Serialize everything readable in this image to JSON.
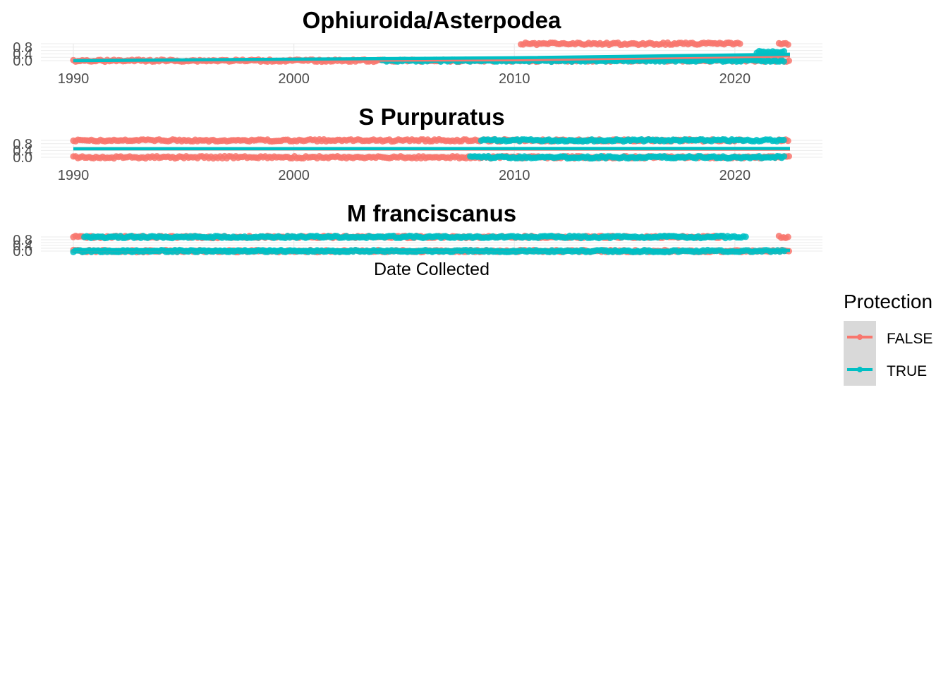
{
  "chart_data": {
    "type": "scatter",
    "x_label": "Date Collected",
    "legend": {
      "title": "Protection",
      "position": "right",
      "entries": [
        {
          "label": "FALSE",
          "color": "#F8766D"
        },
        {
          "label": "TRUE",
          "color": "#00BFC4"
        }
      ]
    },
    "x_ticks": [
      "1990",
      "2000",
      "2010",
      "2020"
    ],
    "y_ticks": [
      "0.0",
      "0.4",
      "0.8"
    ],
    "grid": true,
    "panels": [
      {
        "title": "Ophiuroida/Asterpodea",
        "show_x_ticks": true,
        "xlim": [
          1990.0,
          2022.5
        ],
        "ylim": [
          0,
          1
        ],
        "series": [
          {
            "name": "FALSE",
            "color": "#F8766D",
            "points_runs": [
              {
                "x": [
                  1990.0,
                  2022.5
                ],
                "y": 0
              },
              {
                "x": [
                  2010.3,
                  2020.3
                ],
                "y": 1
              },
              {
                "x": [
                  2022.0,
                  2022.5
                ],
                "y": 1
              }
            ],
            "trend": [
              [
                1990.0,
                0.0
              ],
              [
                2010.0,
                0.05
              ],
              [
                2022.5,
                0.28
              ]
            ]
          },
          {
            "name": "TRUE",
            "color": "#00BFC4",
            "points_runs": [
              {
                "x": [
                  2004.0,
                  2022.3
                ],
                "y": 0
              },
              {
                "x": [
                  2021.0,
                  2022.3
                ],
                "y": 0.5
              }
            ],
            "trend": [
              [
                1990.0,
                0.0
              ],
              [
                2010.0,
                0.17
              ],
              [
                2022.5,
                0.38
              ]
            ]
          }
        ]
      },
      {
        "title": "S Purpuratus",
        "show_x_ticks": true,
        "xlim": [
          1990.0,
          2022.5
        ],
        "ylim": [
          0,
          1
        ],
        "series": [
          {
            "name": "FALSE",
            "color": "#F8766D",
            "points_runs": [
              {
                "x": [
                  1990.0,
                  2022.5
                ],
                "y": 0
              },
              {
                "x": [
                  1990.0,
                  2020.5
                ],
                "y": 1
              },
              {
                "x": [
                  2022.0,
                  2022.5
                ],
                "y": 1
              }
            ],
            "trend": [
              [
                1990.0,
                0.5
              ],
              [
                2022.5,
                0.48
              ]
            ]
          },
          {
            "name": "TRUE",
            "color": "#00BFC4",
            "points_runs": [
              {
                "x": [
                  2008.0,
                  2022.3
                ],
                "y": 0
              },
              {
                "x": [
                  2008.5,
                  2022.3
                ],
                "y": 1
              }
            ],
            "trend": [
              [
                1990.0,
                0.5
              ],
              [
                2022.5,
                0.52
              ]
            ]
          }
        ]
      },
      {
        "title": "M franciscanus",
        "show_x_ticks": false,
        "xlim": [
          1990.0,
          2022.5
        ],
        "ylim": [
          0,
          1
        ],
        "series": [
          {
            "name": "FALSE",
            "color": "#F8766D",
            "points_runs": [
              {
                "x": [
                  1990.0,
                  2022.5
                ],
                "y": 0
              },
              {
                "x": [
                  1990.0,
                  2019.5
                ],
                "y": 1
              },
              {
                "x": [
                  2022.0,
                  2022.5
                ],
                "y": 1
              }
            ],
            "trend": [
              [
                1990.0,
                0.1
              ],
              [
                2022.5,
                0.05
              ]
            ]
          },
          {
            "name": "TRUE",
            "color": "#00BFC4",
            "points_runs": [
              {
                "x": [
                  1990.0,
                  2022.3
                ],
                "y": 0
              },
              {
                "x": [
                  1990.5,
                  2020.5
                ],
                "y": 1
              }
            ],
            "trend": [
              [
                1990.0,
                0.1
              ],
              [
                2022.5,
                0.05
              ]
            ]
          }
        ]
      }
    ]
  }
}
